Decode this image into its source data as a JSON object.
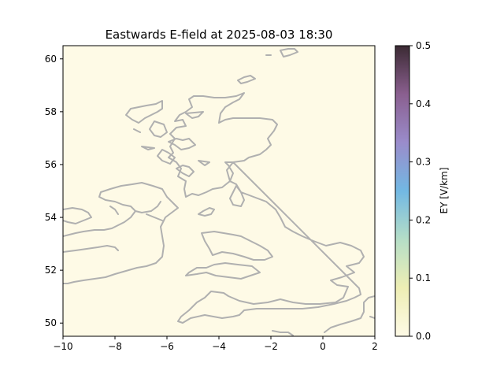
{
  "title": "Eastwards E-field at 2025-08-03 18:30",
  "map": {
    "background_color": "#fefae6",
    "coastline_color": "#b0b0b0",
    "xlim": [
      -10,
      2
    ],
    "ylim": [
      49.5,
      60.5
    ],
    "x_ticks": [
      -10,
      -8,
      -6,
      -4,
      -2,
      0,
      2
    ],
    "x_tick_labels": [
      "−10",
      "−8",
      "−6",
      "−4",
      "−2",
      "0",
      "2"
    ],
    "y_ticks": [
      50,
      52,
      54,
      56,
      58,
      60
    ],
    "y_tick_labels": [
      "50",
      "52",
      "54",
      "56",
      "58",
      "60"
    ]
  },
  "colorbar": {
    "label": "EY [V/km]",
    "range": [
      0.0,
      0.5
    ],
    "ticks": [
      0.0,
      0.1,
      0.2,
      0.3,
      0.4,
      0.5
    ],
    "tick_labels": [
      "0.0",
      "0.1",
      "0.2",
      "0.3",
      "0.4",
      "0.5"
    ],
    "colors": [
      "#fefae6",
      "#eeeeb4",
      "#b5dec7",
      "#72b8e3",
      "#9a8ccb",
      "#8a5f8f",
      "#3b2a33"
    ]
  }
}
